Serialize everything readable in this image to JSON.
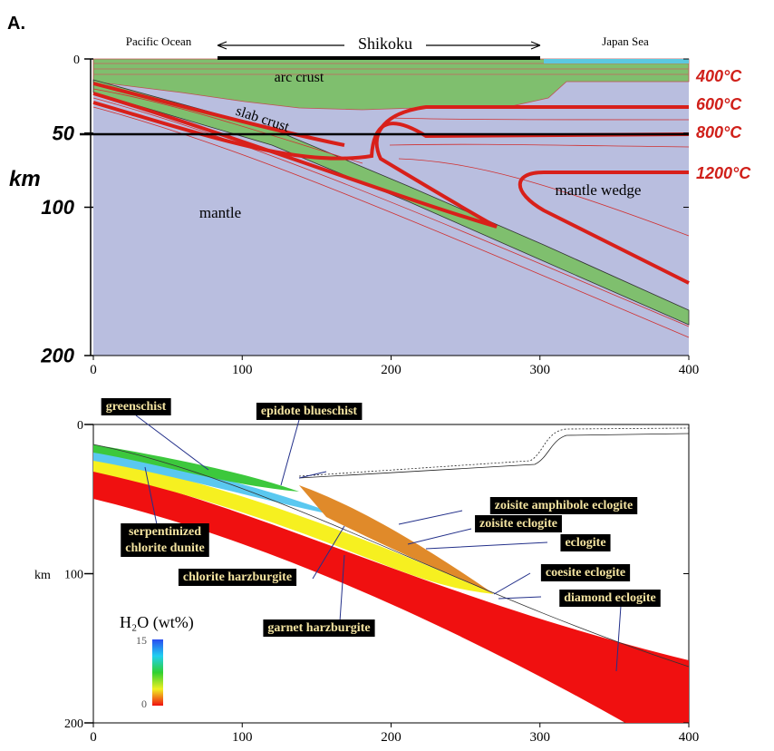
{
  "panel_label": "A.",
  "top": {
    "regions": {
      "west": "Pacific Ocean",
      "middle": "Shikoku",
      "east": "Japan Sea"
    },
    "labels": {
      "arc_crust": "arc crust",
      "slab_crust": "slab crust",
      "mantle": "mantle",
      "mantle_wedge": "mantle wedge"
    },
    "isotherms": [
      "400°C",
      "600°C",
      "800°C",
      "1200°C"
    ],
    "y_axis_label": "km",
    "xticks": [
      0,
      100,
      200,
      300,
      400
    ],
    "yticks": [
      0,
      50,
      100,
      200
    ]
  },
  "bottom": {
    "facies": {
      "greenschist": "greenschist",
      "epidote_blueschist": "epidote blueschist",
      "zoisite_amphibole_eclogite": "zoisite amphibole eclogite",
      "zoisite_eclogite": "zoisite eclogite",
      "eclogite": "eclogite",
      "coesite_eclogite": "coesite eclogite",
      "diamond_eclogite": "diamond eclogite",
      "serpentinized_chlorite_dunite": [
        "serpentinized",
        "chlorite dunite"
      ],
      "chlorite_harzburgite": "chlorite harzburgite",
      "garnet_harzburgite": "garnet harzburgite"
    },
    "colorbar": {
      "title": "H₂O (wt%)",
      "max": 15,
      "min": 0
    },
    "y_axis_label": "km",
    "xticks": [
      0,
      100,
      200,
      300,
      400
    ],
    "yticks": [
      0,
      100,
      200
    ]
  }
}
